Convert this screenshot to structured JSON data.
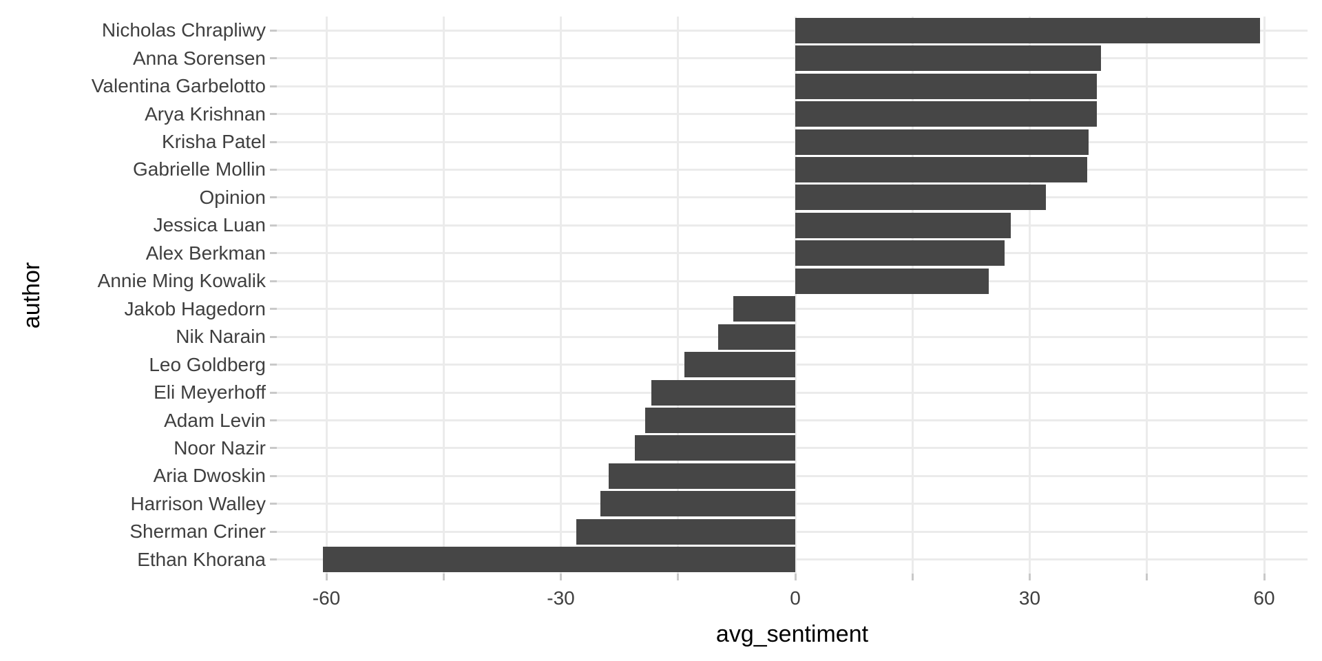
{
  "chart_data": {
    "type": "bar",
    "orientation": "horizontal",
    "title": "",
    "xlabel": "avg_sentiment",
    "ylabel": "author",
    "categories": [
      "Nicholas Chrapliwy",
      "Anna Sorensen",
      "Valentina Garbelotto",
      "Arya Krishnan",
      "Krisha Patel",
      "Gabrielle Mollin",
      "Opinion",
      "Jessica Luan",
      "Alex Berkman",
      "Annie Ming Kowalik",
      "Jakob Hagedorn",
      "Nik Narain",
      "Leo Goldberg",
      "Eli Meyerhoff",
      "Adam Levin",
      "Noor Nazir",
      "Aria Dwoskin",
      "Harrison Walley",
      "Sherman Criner",
      "Ethan Khorana"
    ],
    "values": [
      59.5,
      39.1,
      38.6,
      38.6,
      37.5,
      37.4,
      32.1,
      27.6,
      26.8,
      24.8,
      -7.9,
      -9.9,
      -14.2,
      -18.4,
      -19.2,
      -20.5,
      -23.9,
      -24.9,
      -28.0,
      -60.4
    ],
    "x_axis": {
      "tick_values": [
        -60,
        -30,
        0,
        30,
        60
      ],
      "tick_labels": [
        "-60",
        "-30",
        "0",
        "30",
        "60"
      ],
      "gridline_values": [
        -60,
        -45,
        -30,
        -15,
        0,
        15,
        30,
        45,
        60
      ],
      "range": [
        -66.3,
        65.6
      ]
    },
    "grid": "on",
    "legend_position": "none",
    "colors": {
      "bar_fill": "#464646",
      "gridline": "#EBEBEB",
      "tick_mark": "#C9C9C9",
      "axis_text": "#3F3F3F",
      "axis_title": "#000000",
      "background": "#FFFFFF"
    }
  }
}
